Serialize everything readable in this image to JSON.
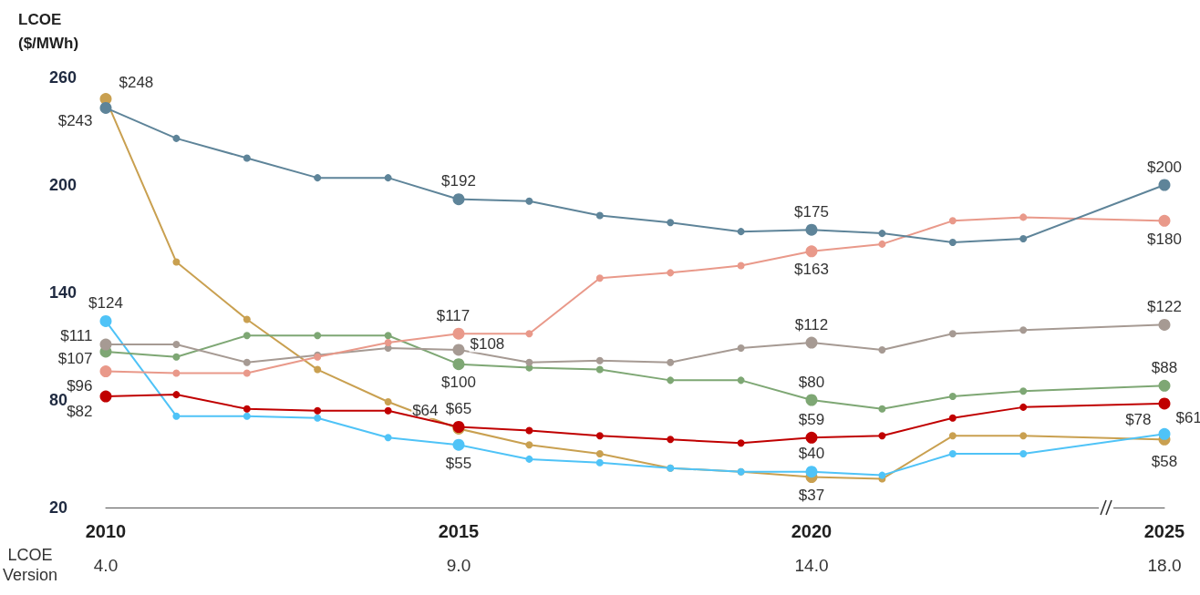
{
  "chart_data": {
    "type": "line",
    "ylabel": "LCOE\n($/MWh)",
    "x": [
      2010,
      2011,
      2012,
      2013,
      2014,
      2015,
      2016,
      2017,
      2018,
      2019,
      2020,
      2021,
      2022,
      2023,
      2025
    ],
    "xlim": [
      2010,
      2025
    ],
    "xticks": [
      2010,
      2015,
      2020,
      2025
    ],
    "ylim": [
      20,
      260
    ],
    "yticks": [
      20,
      80,
      140,
      200,
      260
    ],
    "grid": false,
    "marker": "circle",
    "line_style": "solid",
    "series": [
      {
        "color": "#5e8499",
        "values": [
          243,
          226,
          215,
          204,
          204,
          192,
          191,
          183,
          179,
          174,
          175,
          173,
          168,
          170,
          200
        ],
        "value_labels": [
          "$243",
          null,
          null,
          null,
          null,
          "$192",
          null,
          null,
          null,
          null,
          "$175",
          null,
          null,
          null,
          "$200"
        ]
      },
      {
        "color": "#e9998a",
        "values": [
          96,
          95,
          95,
          104,
          112,
          117,
          117,
          148,
          151,
          155,
          163,
          167,
          180,
          182,
          180
        ],
        "value_labels": [
          "$96",
          null,
          null,
          null,
          null,
          "$117",
          null,
          null,
          null,
          null,
          "$163",
          null,
          null,
          null,
          "$180"
        ]
      },
      {
        "color": "#a69a93",
        "values": [
          111,
          111,
          101,
          105,
          109,
          108,
          101,
          102,
          101,
          109,
          112,
          108,
          117,
          119,
          122
        ],
        "value_labels": [
          "$111",
          null,
          null,
          null,
          null,
          "$108",
          null,
          null,
          null,
          null,
          "$112",
          null,
          null,
          null,
          "$122"
        ]
      },
      {
        "color": "#7ea774",
        "values": [
          107,
          104,
          116,
          116,
          116,
          100,
          98,
          97,
          91,
          91,
          80,
          75,
          82,
          85,
          88
        ],
        "value_labels": [
          "$107",
          null,
          null,
          null,
          null,
          "$100",
          null,
          null,
          null,
          null,
          "$80",
          null,
          null,
          null,
          "$88"
        ]
      },
      {
        "color": "#c00000",
        "values": [
          82,
          83,
          75,
          74,
          74,
          65,
          63,
          60,
          58,
          56,
          59,
          60,
          70,
          76,
          78
        ],
        "value_labels": [
          "$82",
          null,
          null,
          null,
          null,
          "$65",
          null,
          null,
          null,
          null,
          "$59",
          null,
          null,
          null,
          "$78"
        ]
      },
      {
        "color": "#4fc3f7",
        "values": [
          124,
          71,
          71,
          70,
          59,
          55,
          47,
          45,
          42,
          40,
          40,
          38,
          50,
          50,
          61
        ],
        "value_labels": [
          "$124",
          null,
          null,
          null,
          null,
          "$55",
          null,
          null,
          null,
          null,
          "$40",
          null,
          null,
          null,
          "$61"
        ]
      },
      {
        "color": "#c9a050",
        "values": [
          248,
          157,
          125,
          97,
          79,
          64,
          55,
          50,
          42,
          40,
          37,
          36,
          60,
          60,
          58
        ],
        "value_labels": [
          "$248",
          null,
          null,
          null,
          null,
          "$64",
          null,
          null,
          null,
          null,
          "$37",
          null,
          null,
          null,
          "$58"
        ]
      }
    ],
    "annotations": [
      "LCOE\nVersion",
      "4.0",
      "9.0",
      "14.0",
      "18.0"
    ]
  }
}
